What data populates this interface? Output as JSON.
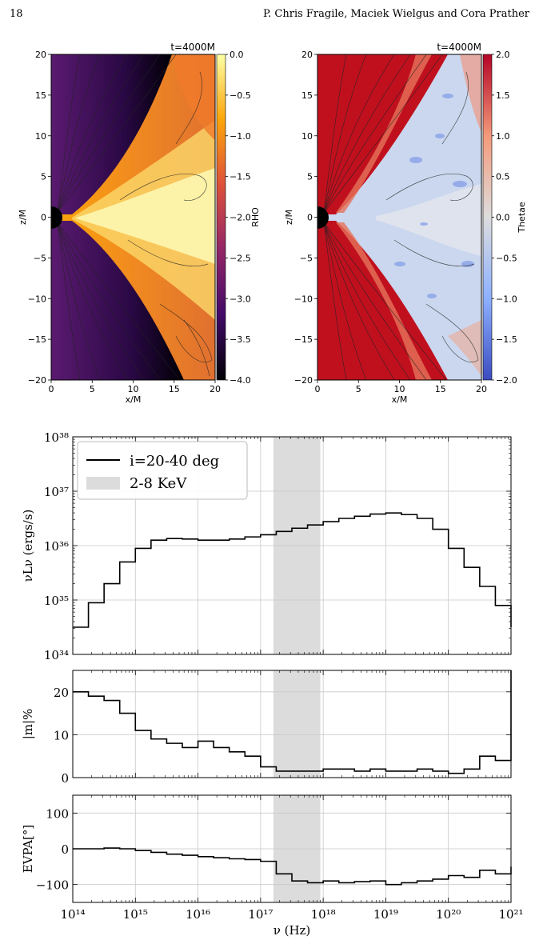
{
  "header": {
    "page_number": "18",
    "authors": "P. Chris Fragile, Maciek Wielgus and Cora Prather"
  },
  "chart_data": [
    {
      "type": "heatmap",
      "title": "t=4000M",
      "xlabel": "x/M",
      "ylabel": "z/M",
      "xticks": [
        "0",
        "5",
        "10",
        "15",
        "20"
      ],
      "yticks": [
        "20",
        "15",
        "10",
        "5",
        "0",
        "−5",
        "−10",
        "−15",
        "−20"
      ],
      "colorbar_label": "RHO",
      "colorbar_ticks": [
        "0.0",
        "−0.5",
        "−1.0",
        "−1.5",
        "−2.0",
        "−2.5",
        "−3.0",
        "−3.5",
        "−4.0"
      ],
      "colormap": [
        "#000004",
        "#420a68",
        "#932667",
        "#dd513a",
        "#fca50a",
        "#fcffa4"
      ],
      "xlim": [
        0,
        20
      ],
      "ylim": [
        -20,
        20
      ],
      "clim": [
        -4,
        0
      ]
    },
    {
      "type": "heatmap",
      "title": "t=4000M",
      "xlabel": "x/M",
      "ylabel": "z/M",
      "xticks": [
        "0",
        "5",
        "10",
        "15",
        "20"
      ],
      "yticks": [
        "20",
        "15",
        "10",
        "5",
        "0",
        "−5",
        "−10",
        "−15",
        "−20"
      ],
      "colorbar_label": "Thetae",
      "colorbar_ticks": [
        "2.0",
        "1.5",
        "1.0",
        "0.5",
        "0.0",
        "−0.5",
        "−1.0",
        "−1.5",
        "−2.0"
      ],
      "colormap": [
        "#3b4cc0",
        "#8db0fe",
        "#dddddd",
        "#f49a7b",
        "#b40426"
      ],
      "xlim": [
        0,
        20
      ],
      "ylim": [
        -20,
        20
      ],
      "clim": [
        -2,
        2
      ]
    },
    {
      "type": "line",
      "ylabel": "νLν (ergs/s)",
      "yscale": "log",
      "ylim": [
        1e+34,
        1e+38
      ],
      "yticks": [
        "10³⁸",
        "10³⁷",
        "10³⁶",
        "10³⁵",
        "10³⁴"
      ],
      "legend": [
        "i=20-40 deg",
        "2-8 KeV"
      ],
      "legend_placement": "top-left",
      "band_x": [
        1.6e+17,
        9e+17
      ],
      "band_color": "#dcdcdc",
      "x": [
        14,
        14.25,
        14.5,
        14.75,
        15,
        15.25,
        15.5,
        15.75,
        16,
        16.25,
        16.5,
        16.75,
        17,
        17.25,
        17.5,
        17.75,
        18,
        18.25,
        18.5,
        18.75,
        19,
        19.25,
        19.5,
        19.75,
        20,
        20.25,
        20.5,
        20.75,
        21
      ],
      "y": [
        34.5,
        34.95,
        35.3,
        35.7,
        35.95,
        36.1,
        36.13,
        36.12,
        36.1,
        36.1,
        36.12,
        36.16,
        36.2,
        36.26,
        36.32,
        36.38,
        36.44,
        36.5,
        36.54,
        36.58,
        36.6,
        36.57,
        36.5,
        36.3,
        35.95,
        35.6,
        35.25,
        34.9,
        34.5
      ]
    },
    {
      "type": "line",
      "ylabel": "|m|%",
      "ylim": [
        0,
        25
      ],
      "yticks": [
        "20",
        "10",
        "0"
      ],
      "band_x": [
        1.6e+17,
        9e+17
      ],
      "x": [
        14,
        14.25,
        14.5,
        14.75,
        15,
        15.25,
        15.5,
        15.75,
        16,
        16.25,
        16.5,
        16.75,
        17,
        17.25,
        17.5,
        17.75,
        18,
        18.25,
        18.5,
        18.75,
        19,
        19.25,
        19.5,
        19.75,
        20,
        20.25,
        20.5,
        20.75,
        21
      ],
      "y": [
        20,
        19,
        18,
        15,
        11,
        9,
        8,
        7,
        8.5,
        7,
        6,
        5,
        2.5,
        1.5,
        1.5,
        1.5,
        2,
        2,
        1.5,
        2,
        1.5,
        1.5,
        2,
        1.5,
        1,
        2,
        5,
        4,
        25
      ]
    },
    {
      "type": "line",
      "xlabel": "ν (Hz)",
      "ylabel": "EVPA[°]",
      "xscale": "log",
      "xlim": [
        100000000000000.0,
        1e+21
      ],
      "ylim": [
        -150,
        150
      ],
      "xticks": [
        "10¹⁴",
        "10¹⁵",
        "10¹⁶",
        "10¹⁷",
        "10¹⁸",
        "10¹⁹",
        "10²⁰",
        "10²¹"
      ],
      "yticks": [
        "100",
        "0",
        "−100"
      ],
      "band_x": [
        1.6e+17,
        9e+17
      ],
      "x": [
        14,
        14.25,
        14.5,
        14.75,
        15,
        15.25,
        15.5,
        15.75,
        16,
        16.25,
        16.5,
        16.75,
        17,
        17.25,
        17.5,
        17.75,
        18,
        18.25,
        18.5,
        18.75,
        19,
        19.25,
        19.5,
        19.75,
        20,
        20.25,
        20.5,
        20.75,
        21
      ],
      "y": [
        0,
        0,
        2,
        0,
        -5,
        -10,
        -15,
        -18,
        -22,
        -25,
        -28,
        -30,
        -35,
        -70,
        -90,
        -95,
        -90,
        -95,
        -92,
        -90,
        -100,
        -95,
        -90,
        -85,
        -75,
        -80,
        -60,
        -70,
        -50
      ]
    }
  ]
}
